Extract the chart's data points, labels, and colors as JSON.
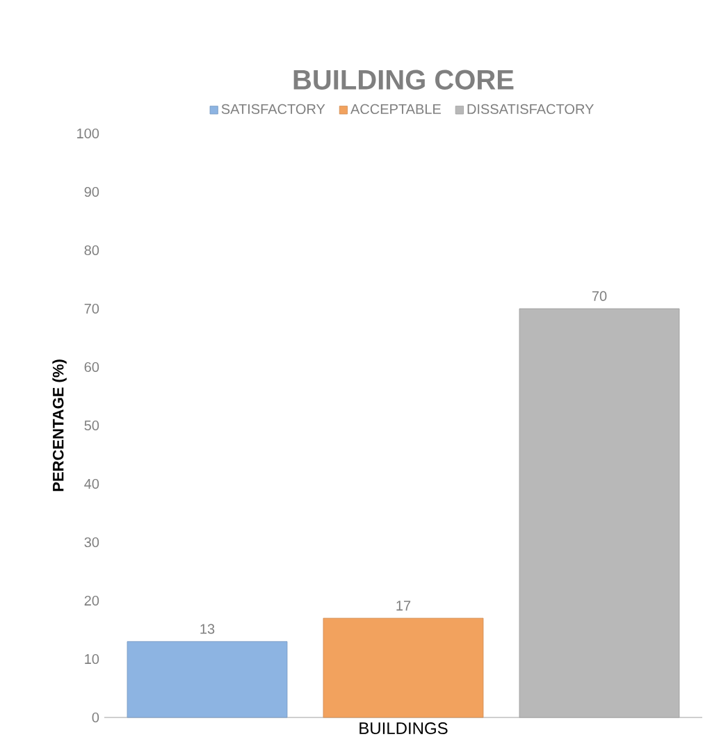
{
  "chart_data": {
    "type": "bar",
    "title": "BUILDING CORE",
    "ylabel": "PERCENTAGE (%)",
    "categories": [
      "BUILDINGS"
    ],
    "series": [
      {
        "name": "SATISFACTORY",
        "color": "#8db4e2",
        "values": [
          13
        ]
      },
      {
        "name": "ACCEPTABLE",
        "color": "#f2a25e",
        "values": [
          17
        ]
      },
      {
        "name": "DISSATISFACTORY",
        "color": "#b8b8b8",
        "values": [
          70
        ]
      }
    ],
    "ylim": [
      0,
      100
    ],
    "yticks": [
      0,
      10,
      20,
      30,
      40,
      50,
      60,
      70,
      80,
      90,
      100
    ],
    "grid": false,
    "legend": "top",
    "data_labels": true
  }
}
